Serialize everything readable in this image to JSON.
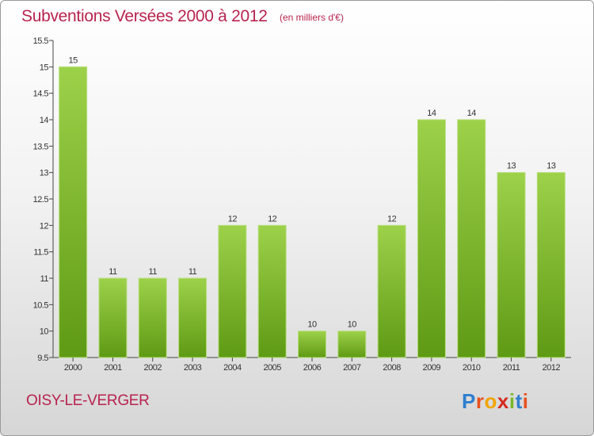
{
  "header": {
    "title": "Subventions Versées 2000 à 2012",
    "unit": "(en milliers d'€)"
  },
  "footer": {
    "commune": "OISY-LE-VERGER",
    "logo_letters": [
      {
        "ch": "P",
        "color": "#2f7fcf"
      },
      {
        "ch": "r",
        "color": "#e8511e"
      },
      {
        "ch": "o",
        "color": "#f0a500"
      },
      {
        "ch": "x",
        "color": "#d42b1e"
      },
      {
        "ch": "i",
        "color": "#7ab828"
      },
      {
        "ch": "t",
        "color": "#2f7fcf"
      },
      {
        "ch": "i",
        "color": "#e8511e"
      }
    ]
  },
  "colors": {
    "title": "#b8234f",
    "bar_light": "#9dd14a",
    "bar_dark": "#5f9a14",
    "axis": "#444444"
  },
  "chart_data": {
    "type": "bar",
    "title": "Subventions Versées 2000 à 2012",
    "subtitle": "(en milliers d'€)",
    "categories": [
      "2000",
      "2001",
      "2002",
      "2003",
      "2004",
      "2005",
      "2006",
      "2007",
      "2008",
      "2009",
      "2010",
      "2011",
      "2012"
    ],
    "values": [
      15,
      11,
      11,
      11,
      12,
      12,
      10,
      10,
      12,
      14,
      14,
      13,
      13
    ],
    "data_labels": [
      "15",
      "11",
      "11",
      "11",
      "12",
      "12",
      "10",
      "10",
      "12",
      "14",
      "14",
      "13",
      "13"
    ],
    "ylim": [
      9.5,
      15.5
    ],
    "yticks": [
      "9.5",
      "10",
      "10.5",
      "11",
      "11.5",
      "12",
      "12.5",
      "13",
      "13.5",
      "14",
      "14.5",
      "15",
      "15.5"
    ],
    "grid": false,
    "legend": "none"
  }
}
